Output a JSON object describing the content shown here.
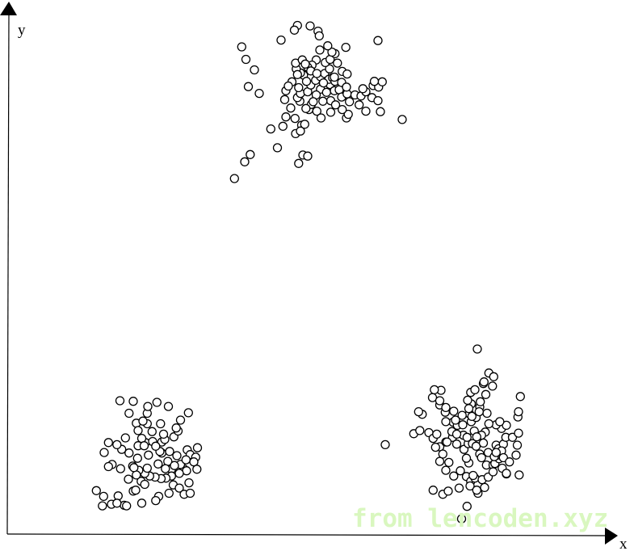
{
  "chart_data": {
    "type": "scatter",
    "xlabel": "x",
    "ylabel": "y",
    "xlim": [
      0,
      100
    ],
    "ylim": [
      0,
      100
    ],
    "grid": false,
    "legend": "none",
    "marker": "open-circle",
    "series": [
      {
        "points": [
          [
            37.5,
            68
          ],
          [
            39.2,
            71.2
          ],
          [
            40.1,
            72.6
          ],
          [
            43.5,
            77.5
          ],
          [
            44.6,
            73.9
          ],
          [
            45.5,
            78
          ],
          [
            47.6,
            76.6
          ],
          [
            48.6,
            78.2
          ],
          [
            46.8,
            81.5
          ],
          [
            47.5,
            79.5
          ],
          [
            49.8,
            81.2
          ],
          [
            50.2,
            82.2
          ],
          [
            51.1,
            80.9
          ],
          [
            51.8,
            79.6
          ],
          [
            53.4,
            80.7
          ],
          [
            56,
            79.6
          ],
          [
            53.4,
            82.9
          ],
          [
            51.7,
            85.1
          ],
          [
            51,
            84
          ],
          [
            52.7,
            84.5
          ],
          [
            53.3,
            86
          ],
          [
            54,
            84.8
          ],
          [
            54.8,
            85
          ],
          [
            55.2,
            83.6
          ],
          [
            56.1,
            84.2
          ],
          [
            56.5,
            82.7
          ],
          [
            57.4,
            84
          ],
          [
            58.4,
            83.8
          ],
          [
            59.2,
            84.6
          ],
          [
            60.2,
            83.5
          ],
          [
            61.2,
            82.9
          ],
          [
            61.6,
            80.8
          ],
          [
            59.2,
            80.9
          ],
          [
            58.1,
            82.1
          ],
          [
            56.3,
            80.3
          ],
          [
            55.3,
            81.2
          ],
          [
            54.2,
            82.1
          ],
          [
            52.1,
            82.8
          ],
          [
            50.5,
            82.7
          ],
          [
            49.3,
            81.4
          ],
          [
            48.3,
            82.8
          ],
          [
            47.9,
            83.5
          ],
          [
            48.4,
            84.3
          ],
          [
            48.1,
            85.4
          ],
          [
            49.6,
            84.6
          ],
          [
            50.1,
            85.9
          ],
          [
            50.9,
            86.8
          ],
          [
            51.7,
            87.5
          ],
          [
            52.4,
            88.1
          ],
          [
            53.1,
            87
          ],
          [
            53.7,
            87.3
          ],
          [
            53.2,
            89
          ],
          [
            52.5,
            90.2
          ],
          [
            53.3,
            90.8
          ],
          [
            54.1,
            91.9
          ],
          [
            53.6,
            92.2
          ],
          [
            52.9,
            93.4
          ],
          [
            51.6,
            92.6
          ],
          [
            51,
            90.7
          ],
          [
            50.3,
            89.7
          ],
          [
            49.6,
            89.3
          ],
          [
            48.9,
            87.8
          ],
          [
            48.4,
            88.2
          ],
          [
            47.7,
            89
          ],
          [
            47,
            86.5
          ],
          [
            46,
            84.8
          ],
          [
            45.8,
            83.1
          ],
          [
            46.4,
            85.7
          ],
          [
            49.4,
            86.6
          ],
          [
            47.9,
            87.9
          ],
          [
            47.6,
            90.1
          ],
          [
            48.7,
            90.7
          ],
          [
            49.2,
            89.9
          ],
          [
            50.1,
            88.6
          ],
          [
            51.1,
            88.1
          ],
          [
            52.2,
            86.3
          ],
          [
            54.1,
            86.6
          ],
          [
            55.2,
            86.4
          ],
          [
            54,
            87.4
          ],
          [
            55.3,
            88.5
          ],
          [
            56,
            85.5
          ],
          [
            58.7,
            85.2
          ],
          [
            60.4,
            85.8
          ],
          [
            61.3,
            85.5
          ],
          [
            61.9,
            86.5
          ],
          [
            60.6,
            86.6
          ],
          [
            56.1,
            88
          ],
          [
            55.9,
            93.1
          ],
          [
            54.5,
            90.1
          ],
          [
            51.3,
            96.2
          ],
          [
            50,
            97.2
          ],
          [
            47.9,
            97.3
          ],
          [
            47.4,
            96.4
          ],
          [
            51.5,
            95.3
          ],
          [
            45.2,
            94.5
          ],
          [
            39.4,
            90.8
          ],
          [
            40.8,
            88.8
          ],
          [
            39.8,
            85.6
          ],
          [
            41.6,
            84.3
          ],
          [
            38.7,
            93.2
          ],
          [
            61.2,
            94.4
          ],
          [
            65.2,
            79.3
          ],
          [
            48.8,
            72.5
          ],
          [
            48.1,
            70.9
          ],
          [
            49.6,
            72.3
          ],
          [
            48.4,
            77.1
          ],
          [
            46,
            79.8
          ],
          [
            49.1,
            78.4
          ]
        ]
      },
      {
        "points": [
          [
            14.7,
            8.3
          ],
          [
            15.9,
            7.2
          ],
          [
            17.2,
            5.7
          ],
          [
            18.3,
            7.3
          ],
          [
            19.3,
            5.5
          ],
          [
            20.8,
            8.2
          ],
          [
            22.1,
            10.1
          ],
          [
            22.7,
            9.5
          ],
          [
            25,
            7.2
          ],
          [
            27.4,
            9.4
          ],
          [
            28.4,
            8.8
          ],
          [
            29.2,
            7.6
          ],
          [
            30.2,
            7.8
          ],
          [
            30,
            9.8
          ],
          [
            29.1,
            12.5
          ],
          [
            28.6,
            13.3
          ],
          [
            27.1,
            12.4
          ],
          [
            26.5,
            13.9
          ],
          [
            25.5,
            15.5
          ],
          [
            23.3,
            15.1
          ],
          [
            21.5,
            14.5
          ],
          [
            20.7,
            13
          ],
          [
            20,
            10.5
          ],
          [
            18.7,
            12.5
          ],
          [
            17.3,
            13.3
          ],
          [
            16.7,
            12.9
          ],
          [
            18.9,
            16.2
          ],
          [
            20.1,
            15.5
          ],
          [
            21.6,
            16.9
          ],
          [
            22.8,
            17.5
          ],
          [
            24,
            17.7
          ],
          [
            25.5,
            17.6
          ],
          [
            26,
            18.1
          ],
          [
            27.5,
            18.6
          ],
          [
            28.2,
            19.7
          ],
          [
            29.7,
            16.1
          ],
          [
            30.2,
            15.2
          ],
          [
            31.1,
            14.7
          ],
          [
            30.8,
            13.8
          ],
          [
            31.3,
            12.4
          ],
          [
            29.6,
            12.1
          ],
          [
            28.4,
            11.6
          ],
          [
            27.1,
            11.1
          ],
          [
            26.2,
            10.7
          ],
          [
            25.4,
            10.6
          ],
          [
            24.4,
            10.9
          ],
          [
            23.5,
            11.1
          ],
          [
            22.7,
            11.6
          ],
          [
            21.7,
            12.2
          ],
          [
            21.3,
            11.3
          ],
          [
            23.1,
            12.6
          ],
          [
            24.9,
            13.4
          ],
          [
            26.1,
            12.5
          ],
          [
            27.6,
            13.1
          ],
          [
            29.5,
            14.2
          ],
          [
            28,
            15
          ],
          [
            26.8,
            15.8
          ],
          [
            25.2,
            15.8
          ],
          [
            24.5,
            16.8
          ],
          [
            23.9,
            19.6
          ],
          [
            23.1,
            21.1
          ],
          [
            25.3,
            21.1
          ],
          [
            25.8,
            19.1
          ],
          [
            27.9,
            20.3
          ],
          [
            28.6,
            21.8
          ],
          [
            29.9,
            23.2
          ],
          [
            26.6,
            24.4
          ],
          [
            24.7,
            25.2
          ],
          [
            23.1,
            23.1
          ],
          [
            23.2,
            24.4
          ],
          [
            20.8,
            25.4
          ],
          [
            18.6,
            25.5
          ],
          [
            20.1,
            23.1
          ],
          [
            21.3,
            21.2
          ],
          [
            22.4,
            21.6
          ],
          [
            21.6,
            19.8
          ],
          [
            22.2,
            18.3
          ],
          [
            22.6,
            16.9
          ],
          [
            18.1,
            17.1
          ],
          [
            19.5,
            18.4
          ],
          [
            16,
            15.6
          ],
          [
            16.7,
            17.5
          ],
          [
            20.9,
            12.7
          ],
          [
            22.2,
            5.9
          ],
          [
            19.7,
            5.4
          ],
          [
            24.5,
            6.4
          ],
          [
            26.7,
            7.8
          ],
          [
            15.7,
            5.4
          ],
          [
            18.1,
            5.9
          ],
          [
            21.2,
            8.4
          ],
          [
            31.4,
            16.5
          ]
        ]
      },
      {
        "points": [
          [
            62.4,
            17.1
          ],
          [
            67.1,
            19.2
          ],
          [
            68.1,
            19.8
          ],
          [
            69.6,
            19.4
          ],
          [
            70.3,
            18.3
          ],
          [
            70.9,
            19.1
          ],
          [
            71.4,
            16.7
          ],
          [
            71.9,
            15.3
          ],
          [
            72.4,
            17.6
          ],
          [
            73.5,
            18.5
          ],
          [
            74.2,
            17.2
          ],
          [
            75.4,
            16.2
          ],
          [
            76.1,
            17.3
          ],
          [
            76.7,
            18.4
          ],
          [
            77.1,
            19.7
          ],
          [
            76.6,
            21.5
          ],
          [
            76.3,
            23
          ],
          [
            75.1,
            22.7
          ],
          [
            73.6,
            21.4
          ],
          [
            72.4,
            21.5
          ],
          [
            72.3,
            23.3
          ],
          [
            71.4,
            24.7
          ],
          [
            70.2,
            26.1
          ],
          [
            71.4,
            25.5
          ],
          [
            72.4,
            24.2
          ],
          [
            73.7,
            23.5
          ],
          [
            74.3,
            20.8
          ],
          [
            75.3,
            18.9
          ],
          [
            75.9,
            18.5
          ],
          [
            76.8,
            17.3
          ],
          [
            77.4,
            16.8
          ],
          [
            78,
            15.3
          ],
          [
            78.3,
            14.6
          ],
          [
            79.1,
            13.2
          ],
          [
            80.2,
            13.2
          ],
          [
            80.5,
            13.5
          ],
          [
            81.2,
            14.4
          ],
          [
            80.7,
            17
          ],
          [
            81.1,
            16.3
          ],
          [
            81.9,
            17.2
          ],
          [
            82.3,
            18.5
          ],
          [
            81.6,
            20.2
          ],
          [
            80.7,
            20.9
          ],
          [
            79.5,
            21.1
          ],
          [
            78.9,
            19.5
          ],
          [
            78.3,
            18.9
          ],
          [
            77.5,
            18.6
          ],
          [
            78.6,
            17.4
          ],
          [
            79.4,
            15.6
          ],
          [
            80.9,
            15.1
          ],
          [
            81.6,
            15.9
          ],
          [
            81.9,
            14.6
          ],
          [
            82.9,
            13.8
          ],
          [
            84,
            15.1
          ],
          [
            84.2,
            17
          ],
          [
            83.4,
            18.5
          ],
          [
            84.4,
            19.3
          ],
          [
            84.3,
            22.4
          ],
          [
            82.4,
            20.8
          ],
          [
            81.3,
            21.5
          ],
          [
            79.2,
            23.1
          ],
          [
            78,
            24.3
          ],
          [
            77.4,
            22.3
          ],
          [
            76.6,
            24.9
          ],
          [
            76,
            25.6
          ],
          [
            76.5,
            27.1
          ],
          [
            77.2,
            27.6
          ],
          [
            78.6,
            28.8
          ],
          [
            79.5,
            30.8
          ],
          [
            80.3,
            30.1
          ],
          [
            80.1,
            28.3
          ],
          [
            79,
            26.7
          ],
          [
            78.1,
            25.3
          ],
          [
            76.7,
            22.5
          ],
          [
            75.2,
            20.9
          ],
          [
            74,
            21.8
          ],
          [
            73.4,
            19.6
          ],
          [
            72.6,
            17.6
          ],
          [
            74.2,
            19.1
          ],
          [
            70.7,
            16.6
          ],
          [
            71.4,
            13.9
          ],
          [
            72.9,
            13.7
          ],
          [
            72.4,
            12.2
          ],
          [
            73.7,
            11.1
          ],
          [
            75.8,
            11
          ],
          [
            76.5,
            10.1
          ],
          [
            77.2,
            10.7
          ],
          [
            78.4,
            10.4
          ],
          [
            79.4,
            10.9
          ],
          [
            80.2,
            11.9
          ],
          [
            81.7,
            12.6
          ],
          [
            82.4,
            11.5
          ],
          [
            84.5,
            11.3
          ],
          [
            80.4,
            14.8
          ],
          [
            80.7,
            15.6
          ],
          [
            74.8,
            12.1
          ],
          [
            74.6,
            8.8
          ],
          [
            71.9,
            7.6
          ],
          [
            70.3,
            8.4
          ],
          [
            72.8,
            8.2
          ],
          [
            76.2,
            13.6
          ],
          [
            76.9,
            11.2
          ],
          [
            75.8,
            14.5
          ],
          [
            77.7,
            7.8
          ],
          [
            76.4,
            9.2
          ],
          [
            77.5,
            8.4
          ],
          [
            78.8,
            8.9
          ],
          [
            82.4,
            11.6
          ],
          [
            75.9,
            5.3
          ],
          [
            75,
            2.9
          ],
          [
            76.2,
            24
          ],
          [
            77.9,
            23.4
          ],
          [
            78.7,
            29.1
          ],
          [
            84.7,
            26.3
          ],
          [
            84.4,
            23.4
          ],
          [
            68.5,
            22.9
          ],
          [
            71.6,
            27.5
          ],
          [
            70.5,
            27.6
          ],
          [
            77.6,
            35.4
          ],
          [
            67.9,
            23.4
          ]
        ]
      }
    ]
  },
  "watermark": "from lencoden.xyz"
}
